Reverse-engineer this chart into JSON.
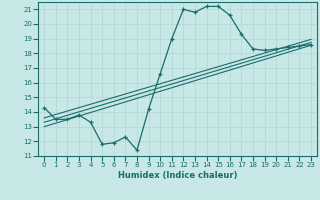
{
  "xlabel": "Humidex (Indice chaleur)",
  "ylabel": "",
  "bg_color": "#c8e8e8",
  "line_color": "#1a6b6b",
  "grid_color": "#b8d8d8",
  "xlim": [
    -0.5,
    23.5
  ],
  "ylim": [
    11,
    21.5
  ],
  "yticks": [
    11,
    12,
    13,
    14,
    15,
    16,
    17,
    18,
    19,
    20,
    21
  ],
  "xticks": [
    0,
    1,
    2,
    3,
    4,
    5,
    6,
    7,
    8,
    9,
    10,
    11,
    12,
    13,
    14,
    15,
    16,
    17,
    18,
    19,
    20,
    21,
    22,
    23
  ],
  "main_x": [
    0,
    1,
    2,
    3,
    4,
    5,
    6,
    7,
    8,
    9,
    10,
    11,
    12,
    13,
    14,
    15,
    16,
    17,
    18,
    19,
    20,
    21,
    22,
    23
  ],
  "main_y": [
    14.3,
    13.5,
    13.5,
    13.8,
    13.3,
    11.8,
    11.9,
    12.3,
    11.4,
    14.2,
    16.6,
    19.0,
    21.0,
    20.8,
    21.2,
    21.2,
    20.6,
    19.3,
    18.3,
    18.2,
    18.3,
    18.4,
    18.5,
    18.6
  ],
  "diag_lines": [
    {
      "x": [
        0,
        23
      ],
      "y": [
        13.0,
        18.55
      ]
    },
    {
      "x": [
        0,
        23
      ],
      "y": [
        13.3,
        18.75
      ]
    },
    {
      "x": [
        0,
        23
      ],
      "y": [
        13.6,
        18.95
      ]
    }
  ],
  "tick_fontsize": 5.0,
  "xlabel_fontsize": 6.0
}
